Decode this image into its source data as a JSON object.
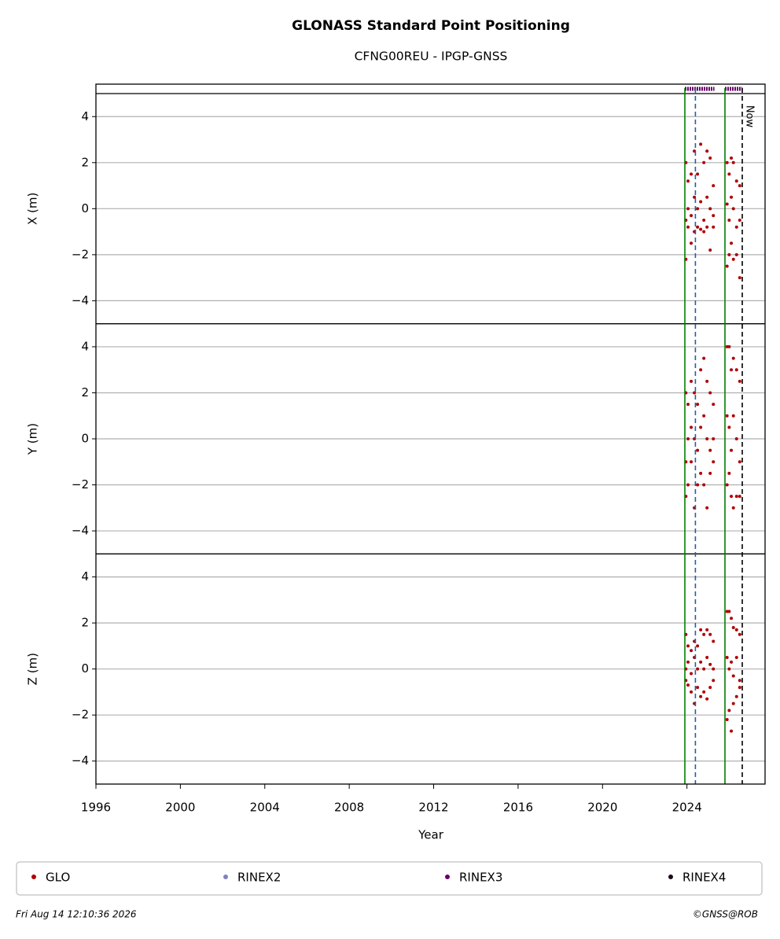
{
  "chart_data": {
    "type": "scatter",
    "title": "GLONASS Standard Point Positioning",
    "subtitle": "CFNG00REU - IPGP-GNSS",
    "xlabel": "Year",
    "xlim": [
      1996,
      2027.7
    ],
    "xticks": [
      1996,
      2000,
      2004,
      2008,
      2012,
      2016,
      2020,
      2024
    ],
    "grid": true,
    "glo": {
      "name": "GLO",
      "color": "#b00000",
      "x": [
        2023.95,
        2023.95,
        2023.95,
        2024.05,
        2024.05,
        2024.05,
        2024.2,
        2024.2,
        2024.2,
        2024.35,
        2024.35,
        2024.35,
        2024.5,
        2024.5,
        2024.5,
        2024.65,
        2024.65,
        2024.65,
        2024.8,
        2024.8,
        2024.8,
        2024.95,
        2024.95,
        2024.95,
        2025.1,
        2025.1,
        2025.1,
        2025.25,
        2025.25,
        2025.25,
        2025.9,
        2025.9,
        2025.9,
        2026.0,
        2026.0,
        2026.0,
        2026.1,
        2026.1,
        2026.1,
        2026.2,
        2026.2,
        2026.2,
        2026.35,
        2026.35,
        2026.35,
        2026.5,
        2026.5,
        2026.5
      ]
    },
    "panels": [
      {
        "ylabel": "X (m)",
        "ylim": [
          -5,
          5
        ],
        "yticks": [
          {
            "value": -4,
            "label": "−4"
          },
          {
            "value": -2,
            "label": "−2"
          },
          0,
          2,
          4
        ],
        "values": [
          2,
          -0.5,
          -2.2,
          1.2,
          0,
          -0.8,
          1.5,
          -0.3,
          -1.5,
          2.5,
          0.5,
          -1,
          1.5,
          0,
          -0.8,
          2.8,
          0.3,
          -0.9,
          2,
          -0.5,
          -1,
          2.5,
          0.5,
          -0.8,
          2.2,
          0,
          -1.8,
          1,
          -0.3,
          -0.8,
          2,
          0.2,
          -2.5,
          1.5,
          -0.5,
          -2,
          2.2,
          0.5,
          -1.5,
          2,
          0,
          -2.2,
          1.2,
          -0.8,
          -2,
          1,
          -0.5,
          -3
        ]
      },
      {
        "ylabel": "Y (m)",
        "ylim": [
          -5,
          5
        ],
        "yticks": [
          {
            "value": -4,
            "label": "−4"
          },
          {
            "value": -2,
            "label": "−2"
          },
          0,
          2,
          4
        ],
        "values": [
          2,
          -1,
          -2.5,
          1.5,
          0,
          -2,
          2.5,
          0.5,
          -1,
          2,
          0,
          -3,
          1.5,
          -0.5,
          -2,
          3,
          0.5,
          -1.5,
          3.5,
          1,
          -2,
          2.5,
          0,
          -3,
          2,
          -0.5,
          -1.5,
          1.5,
          0,
          -1,
          4,
          1,
          -2,
          4,
          0.5,
          -1.5,
          3,
          -0.5,
          -2.5,
          3.5,
          1,
          -3,
          3,
          0,
          -2.5,
          2.5,
          -1,
          -2.5
        ]
      },
      {
        "ylabel": "Z (m)",
        "ylim": [
          -5,
          5
        ],
        "yticks": [
          {
            "value": -4,
            "label": "−4"
          },
          {
            "value": -2,
            "label": "−2"
          },
          0,
          2,
          4
        ],
        "values": [
          1.5,
          0,
          -0.5,
          1,
          0.3,
          -0.7,
          0.8,
          -0.2,
          -1,
          1.2,
          0.5,
          -1.5,
          1,
          0,
          -0.8,
          1.7,
          0.3,
          -1.2,
          1.5,
          0,
          -1,
          1.7,
          0.5,
          -1.3,
          1.5,
          0.2,
          -0.8,
          1.2,
          0,
          -0.5,
          2.5,
          0.5,
          -2.2,
          2.5,
          0,
          -1.8,
          2.2,
          0.3,
          -2.7,
          1.8,
          -0.3,
          -1.5,
          1.7,
          0.5,
          -1.2,
          1.5,
          -0.5,
          -0.8
        ]
      }
    ],
    "rinex": [
      {
        "name": "RINEX2",
        "color": "#8080c0",
        "periods": []
      },
      {
        "name": "RINEX3",
        "color": "#660066",
        "periods": [
          [
            2023.9,
            2025.3
          ],
          [
            2025.8,
            2026.62
          ]
        ]
      },
      {
        "name": "RINEX4",
        "color": "#1a0a1a",
        "periods": []
      }
    ],
    "events": [
      {
        "x": 2023.9,
        "color": "#008000",
        "dash": "none"
      },
      {
        "x": 2024.4,
        "color": "#1f5fa8",
        "dash": "6 4"
      },
      {
        "x": 2025.8,
        "color": "#008000",
        "dash": "none"
      }
    ],
    "now": 2026.62,
    "now_label": "Now",
    "footer_left": "Fri Aug 14 12:10:36 2026",
    "footer_right": "©GNSS@ROB"
  }
}
